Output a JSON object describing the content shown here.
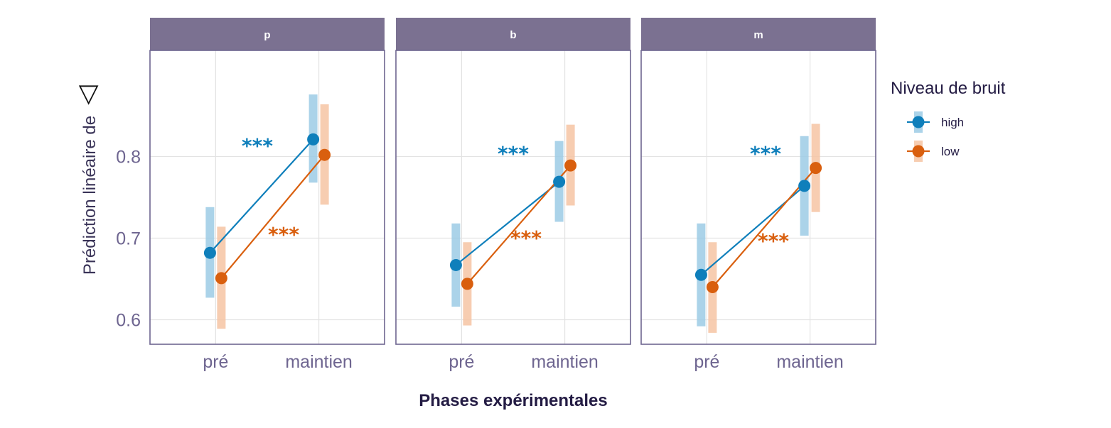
{
  "chart_data": {
    "type": "line",
    "ylabel": "Prédiction linéaire de",
    "ylabel_symbol": "◁",
    "xlabel": "Phases expérimentales",
    "categories": [
      "pré",
      "maintien"
    ],
    "ylim": [
      0.57,
      0.93
    ],
    "yticks": [
      0.6,
      0.7,
      0.8
    ],
    "ytick_labels": [
      "0.6",
      "0.7",
      "0.8"
    ],
    "grid": true,
    "legend": {
      "title": "Niveau de bruit",
      "placement": "right",
      "entries": [
        {
          "label": "high",
          "color": "#0f7fbb"
        },
        {
          "label": "low",
          "color": "#d95f0e"
        }
      ]
    },
    "colors": {
      "high": "#0f7fbb",
      "low": "#d95f0e",
      "high_ci": "#9ccbe5",
      "low_ci": "#f6c4a3",
      "strip": "#7b7191",
      "frame": "#6e6590"
    },
    "significance_marker": "***",
    "panels": [
      {
        "title": "p",
        "series": [
          {
            "name": "high",
            "values": [
              0.682,
              0.821
            ],
            "lower": [
              0.627,
              0.768
            ],
            "upper": [
              0.738,
              0.876
            ]
          },
          {
            "name": "low",
            "values": [
              0.651,
              0.802
            ],
            "lower": [
              0.589,
              0.741
            ],
            "upper": [
              0.714,
              0.864
            ]
          }
        ]
      },
      {
        "title": "b",
        "series": [
          {
            "name": "high",
            "values": [
              0.667,
              0.769
            ],
            "lower": [
              0.616,
              0.72
            ],
            "upper": [
              0.718,
              0.819
            ]
          },
          {
            "name": "low",
            "values": [
              0.644,
              0.789
            ],
            "lower": [
              0.593,
              0.74
            ],
            "upper": [
              0.695,
              0.839
            ]
          }
        ]
      },
      {
        "title": "m",
        "series": [
          {
            "name": "high",
            "values": [
              0.655,
              0.764
            ],
            "lower": [
              0.592,
              0.703
            ],
            "upper": [
              0.718,
              0.825
            ]
          },
          {
            "name": "low",
            "values": [
              0.64,
              0.786
            ],
            "lower": [
              0.584,
              0.732
            ],
            "upper": [
              0.695,
              0.84
            ]
          }
        ]
      }
    ]
  }
}
